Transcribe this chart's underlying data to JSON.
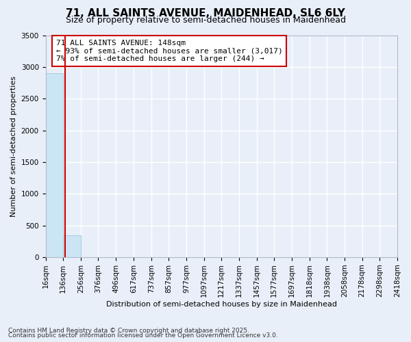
{
  "title_line1": "71, ALL SAINTS AVENUE, MAIDENHEAD, SL6 6LY",
  "title_line2": "Size of property relative to semi-detached houses in Maidenhead",
  "xlabel": "Distribution of semi-detached houses by size in Maidenhead",
  "ylabel": "Number of semi-detached properties",
  "footnote1": "Contains HM Land Registry data © Crown copyright and database right 2025.",
  "footnote2": "Contains public sector information licensed under the Open Government Licence v3.0.",
  "annotation_title": "71 ALL SAINTS AVENUE: 148sqm",
  "annotation_line2": "← 93% of semi-detached houses are smaller (3,017)",
  "annotation_line3": "7% of semi-detached houses are larger (244) →",
  "property_size": 148,
  "bin_edges": [
    16,
    136,
    256,
    376,
    496,
    617,
    737,
    857,
    977,
    1097,
    1217,
    1337,
    1457,
    1577,
    1697,
    1818,
    1938,
    2058,
    2178,
    2298,
    2418
  ],
  "bin_labels": [
    "16sqm",
    "136sqm",
    "256sqm",
    "376sqm",
    "496sqm",
    "617sqm",
    "737sqm",
    "857sqm",
    "977sqm",
    "1097sqm",
    "1217sqm",
    "1337sqm",
    "1457sqm",
    "1577sqm",
    "1697sqm",
    "1818sqm",
    "1938sqm",
    "2058sqm",
    "2178sqm",
    "2298sqm",
    "2418sqm"
  ],
  "bar_heights": [
    2900,
    350,
    0,
    0,
    0,
    0,
    0,
    0,
    0,
    0,
    0,
    0,
    0,
    0,
    0,
    0,
    0,
    0,
    0,
    0
  ],
  "bar_color": "#cce5f5",
  "bar_edge_color": "#a8cce0",
  "vline_color": "#cc0000",
  "vline_x": 148,
  "ylim": [
    0,
    3500
  ],
  "yticks": [
    0,
    500,
    1000,
    1500,
    2000,
    2500,
    3000,
    3500
  ],
  "bg_color": "#e8eff8",
  "grid_color": "#ffffff",
  "annotation_box_color": "#ffffff",
  "annotation_box_edge": "#cc0000",
  "title1_fontsize": 11,
  "title2_fontsize": 9,
  "ylabel_fontsize": 8,
  "xlabel_fontsize": 8,
  "tick_fontsize": 7.5,
  "footnote_fontsize": 6.5
}
